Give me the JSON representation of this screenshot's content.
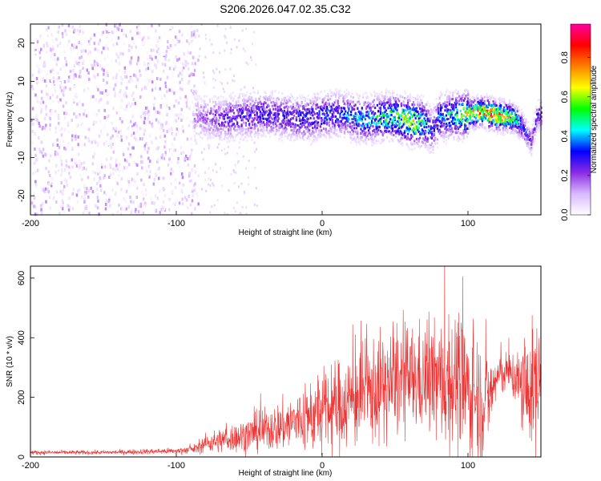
{
  "title": "S206.2026.047.02.35.C32",
  "chart_data": [
    {
      "type": "heatmap",
      "name": "spectrogram",
      "xlabel": "Height of straight line (km)",
      "ylabel": "Frequency (Hz)",
      "xlim": [
        -200,
        150
      ],
      "ylim": [
        -25,
        25
      ],
      "xticks": [
        -200,
        -100,
        0,
        100
      ],
      "yticks": [
        -20,
        -10,
        0,
        10,
        20
      ],
      "colorbar": {
        "label": "Normalized spectral amplitude",
        "ticks": [
          0.0,
          0.2,
          0.4,
          0.6,
          0.8
        ],
        "range": [
          0,
          0.97
        ],
        "colors": [
          "#ffffff",
          "#d8b8ff",
          "#8a2be2",
          "#0000ff",
          "#00ffff",
          "#00ff00",
          "#ffff00",
          "#ff8000",
          "#ff0000",
          "#ff00a0"
        ]
      },
      "ridge": {
        "x": [
          -88,
          -80,
          -70,
          -60,
          -50,
          -40,
          -30,
          -20,
          -10,
          0,
          10,
          20,
          30,
          40,
          50,
          60,
          70,
          75,
          80,
          90,
          100,
          110,
          120,
          130,
          135,
          140,
          143,
          147
        ],
        "center_hz": [
          0.5,
          0.5,
          0.0,
          0.5,
          1.0,
          1.5,
          1.0,
          0.5,
          0.0,
          1.0,
          1.5,
          0.5,
          0.0,
          0.5,
          0.5,
          -0.5,
          -1.0,
          -3.0,
          0.5,
          1.0,
          1.5,
          2.0,
          1.0,
          0.5,
          -1.0,
          -4.0,
          -6.0,
          1.0
        ],
        "peak_amplitude": [
          0.15,
          0.2,
          0.25,
          0.3,
          0.3,
          0.3,
          0.3,
          0.3,
          0.35,
          0.35,
          0.35,
          0.4,
          0.45,
          0.5,
          0.55,
          0.7,
          0.5,
          0.3,
          0.4,
          0.5,
          0.7,
          0.8,
          0.9,
          0.6,
          0.4,
          0.3,
          0.2,
          0.3
        ]
      },
      "noise_region": {
        "x_range": [
          -200,
          -85
        ],
        "amplitude": 0.15
      }
    },
    {
      "type": "line",
      "name": "snr",
      "xlabel": "Height of straight line (km)",
      "ylabel": "SNR (10 * v/v)",
      "xlim": [
        -200,
        150
      ],
      "ylim": [
        0,
        640
      ],
      "xticks": [
        -200,
        -100,
        0,
        100
      ],
      "yticks": [
        0,
        200,
        400,
        600
      ],
      "color": "#ee3333",
      "x": [
        -200,
        -150,
        -100,
        -90,
        -85,
        -80,
        -70,
        -60,
        -50,
        -40,
        -30,
        -20,
        -10,
        0,
        10,
        20,
        30,
        40,
        50,
        60,
        70,
        80,
        85,
        90,
        95,
        100,
        105,
        110,
        115,
        120,
        125,
        130,
        135,
        140,
        145,
        150
      ],
      "mean": [
        15,
        15,
        20,
        25,
        30,
        45,
        55,
        65,
        75,
        90,
        100,
        115,
        130,
        150,
        170,
        190,
        210,
        230,
        250,
        260,
        260,
        250,
        250,
        260,
        240,
        220,
        210,
        190,
        200,
        270,
        280,
        280,
        240,
        210,
        240,
        250
      ],
      "spread": [
        8,
        8,
        12,
        15,
        20,
        35,
        45,
        55,
        65,
        80,
        90,
        110,
        130,
        150,
        170,
        180,
        190,
        200,
        200,
        200,
        200,
        220,
        250,
        250,
        260,
        250,
        240,
        220,
        150,
        90,
        80,
        80,
        150,
        200,
        230,
        250
      ]
    }
  ]
}
